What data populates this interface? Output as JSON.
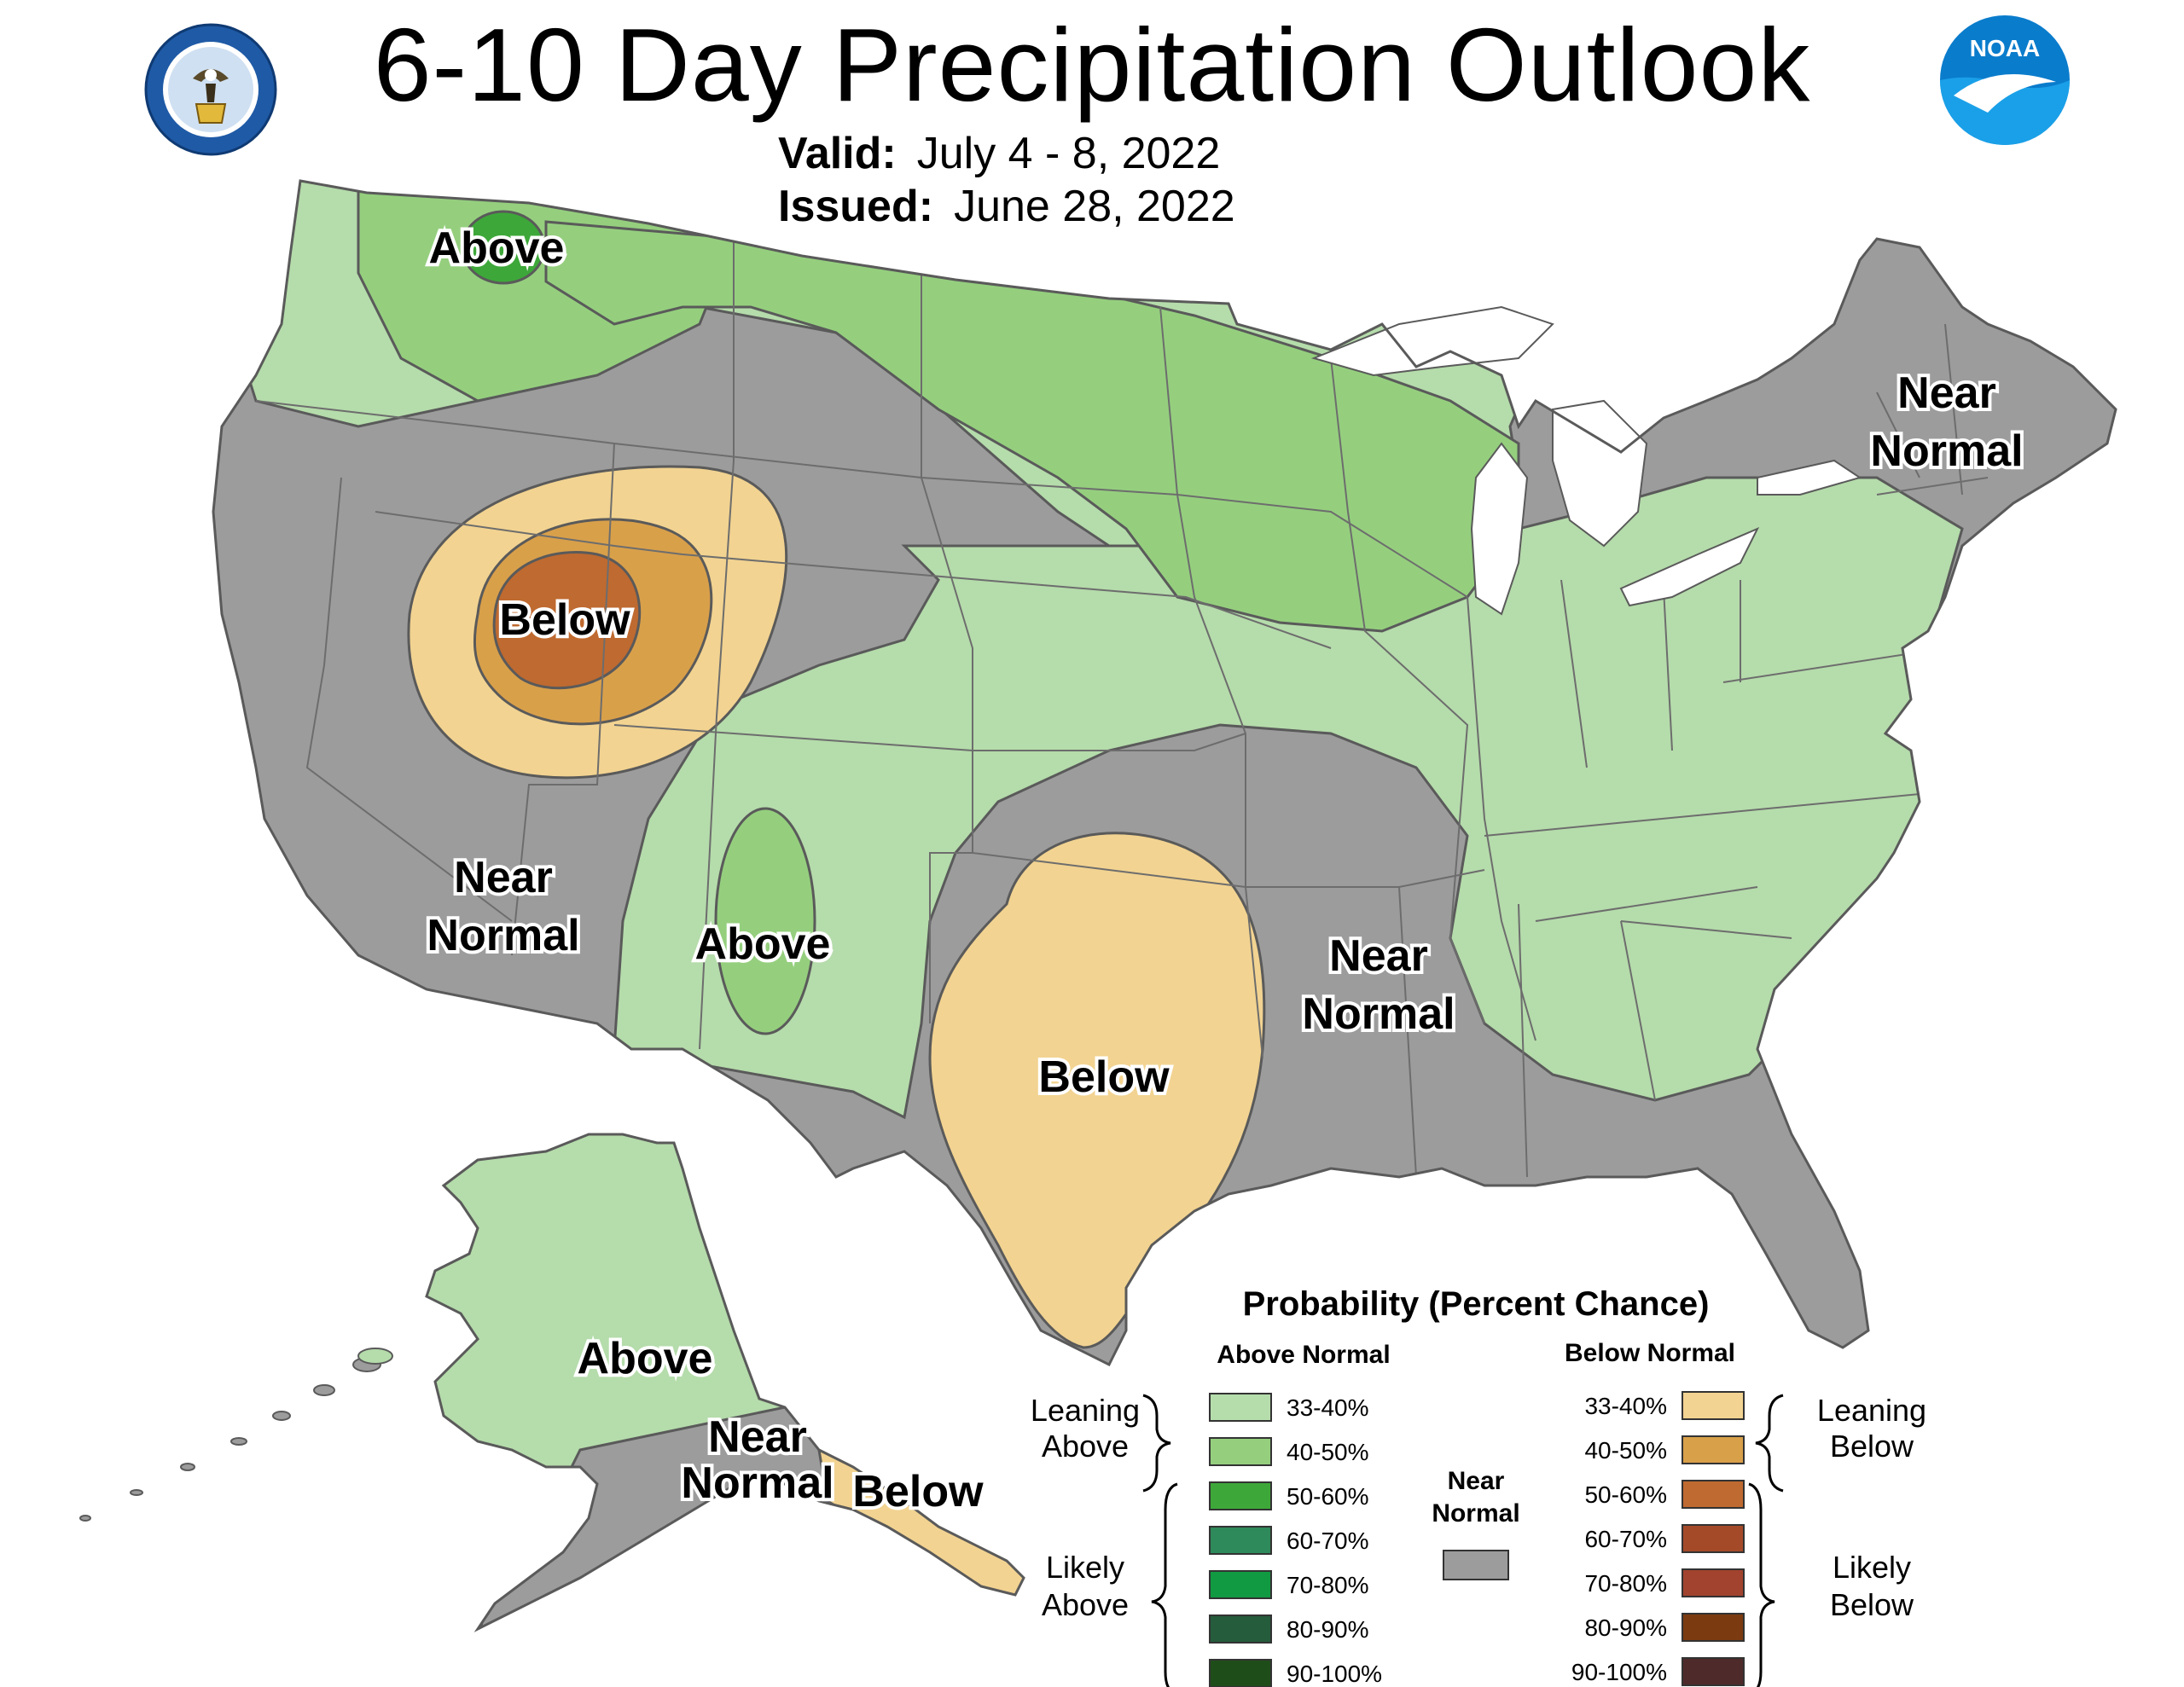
{
  "header": {
    "title": "6-10 Day Precipitation Outlook",
    "valid_label": "Valid:",
    "valid_value": "July 4 - 8, 2022",
    "issued_label": "Issued:",
    "issued_value": "June 28, 2022"
  },
  "logos": {
    "left_icon": "department-of-commerce-seal",
    "right_icon": "noaa-logo",
    "right_logo_text": "NOAA"
  },
  "colors": {
    "above_33_40": "#b5dcab",
    "above_40_50": "#95cf7e",
    "above_50_60": "#3da839",
    "above_60_70": "#2e8a5a",
    "above_70_80": "#119a42",
    "above_80_90": "#255c3c",
    "above_90_100": "#1e4d19",
    "near_normal": "#9c9c9c",
    "below_33_40": "#f2d391",
    "below_40_50": "#d9a04a",
    "below_50_60": "#bf6a30",
    "below_60_70": "#a54a29",
    "below_70_80": "#a1432e",
    "below_80_90": "#7b3a10",
    "below_90_100": "#4e2a2a",
    "map_outline": "#5a5a5a",
    "state_border": "#6d6d6d"
  },
  "map_labels": {
    "nw_above": "Above",
    "west_below": "Below",
    "sw_near": [
      "Near",
      "Normal"
    ],
    "sw_above": "Above",
    "tx_below": "Below",
    "south_near": [
      "Near",
      "Normal"
    ],
    "ne_near": [
      "Near",
      "Normal"
    ],
    "ak_above": "Above",
    "ak_near": [
      "Near",
      "Normal"
    ],
    "ak_below": "Below"
  },
  "legend": {
    "title": "Probability (Percent Chance)",
    "above_header": "Above Normal",
    "below_header": "Below Normal",
    "near_header": [
      "Near",
      "Normal"
    ],
    "leaning_above": [
      "Leaning",
      "Above"
    ],
    "likely_above": [
      "Likely",
      "Above"
    ],
    "leaning_below": [
      "Leaning",
      "Below"
    ],
    "likely_below": [
      "Likely",
      "Below"
    ],
    "bins": [
      "33-40%",
      "40-50%",
      "50-60%",
      "60-70%",
      "70-80%",
      "80-90%",
      "90-100%"
    ]
  }
}
